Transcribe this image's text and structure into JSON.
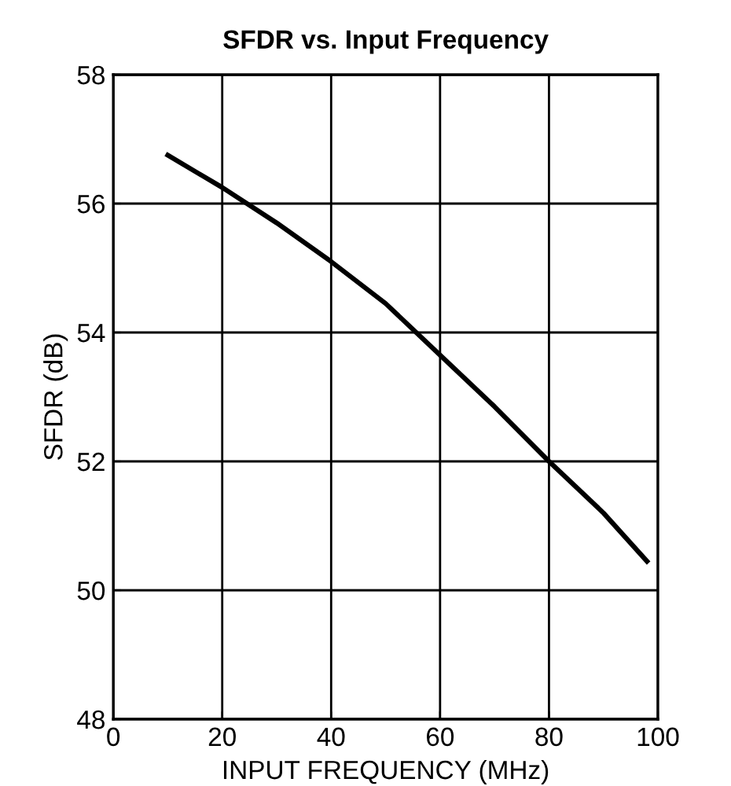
{
  "chart_data": {
    "type": "line",
    "title": "SFDR vs. Input Frequency",
    "xlabel": "INPUT FREQUENCY (MHz)",
    "ylabel": "SFDR (dB)",
    "x": [
      10,
      20,
      30,
      40,
      50,
      60,
      70,
      80,
      90,
      98
    ],
    "series": [
      {
        "color": "#000000",
        "values": [
          56.75,
          56.25,
          55.7,
          55.1,
          54.45,
          53.65,
          52.85,
          52.0,
          51.2,
          50.45
        ]
      }
    ],
    "xlim": [
      0,
      100
    ],
    "xticks": [
      0,
      20,
      40,
      60,
      80,
      100
    ],
    "ylim": [
      48,
      58
    ],
    "yticks": [
      48,
      50,
      52,
      54,
      56,
      58
    ],
    "grid": true,
    "marker": "none",
    "line_style": "solid"
  }
}
